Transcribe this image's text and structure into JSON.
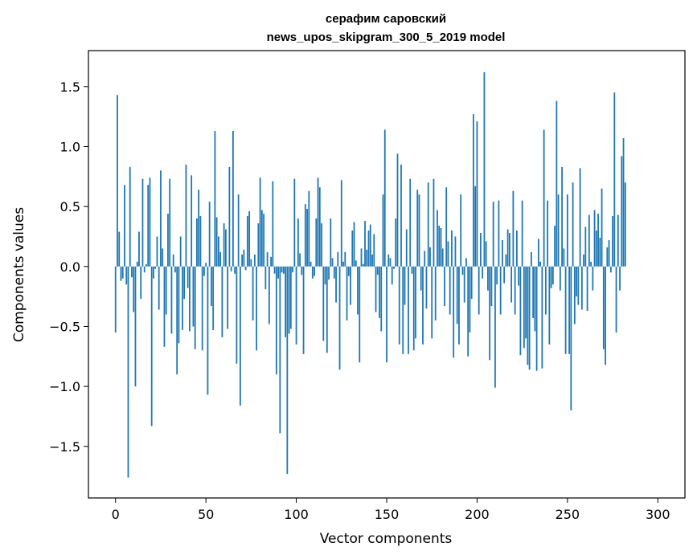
{
  "chart_data": {
    "type": "bar",
    "title": "серафим саровский",
    "subtitle": "news_upos_skipgram_300_5_2019 model",
    "xlabel": "Vector components",
    "ylabel": "Components values",
    "xlim": [
      -15,
      315
    ],
    "ylim": [
      -1.93,
      1.8
    ],
    "xticks": [
      0,
      50,
      100,
      150,
      200,
      250,
      300
    ],
    "xtick_labels": [
      "0",
      "50",
      "100",
      "150",
      "200",
      "250",
      "300"
    ],
    "yticks": [
      1.5,
      1.0,
      0.5,
      0.0,
      -0.5,
      -1.0,
      -1.5
    ],
    "ytick_labels": [
      "1.5",
      "1.0",
      "0.5",
      "0.0",
      "−0.5",
      "−1.0",
      "−1.5"
    ],
    "grid": false,
    "bar_color": "#1f77b4",
    "values": [
      -0.55,
      1.43,
      0.29,
      -0.12,
      -0.1,
      0.68,
      -0.15,
      -1.76,
      0.83,
      -0.09,
      -0.38,
      -1.0,
      0.04,
      0.29,
      -0.27,
      0.73,
      -0.05,
      0.02,
      0.68,
      0.74,
      -1.33,
      -0.1,
      -0.02,
      0.25,
      -0.36,
      0.8,
      0.15,
      -0.67,
      -0.4,
      0.44,
      0.73,
      -0.56,
      0.1,
      -0.05,
      -0.9,
      -0.64,
      0.25,
      -0.53,
      -0.27,
      0.85,
      -0.18,
      -0.54,
      0.76,
      -0.5,
      -0.69,
      0.4,
      0.64,
      0.42,
      -0.7,
      -0.08,
      0.03,
      -1.07,
      0.54,
      -0.33,
      -0.53,
      1.13,
      0.41,
      0.25,
      0.12,
      -0.59,
      0.36,
      0.31,
      -0.52,
      0.83,
      -0.04,
      1.13,
      -0.06,
      -0.81,
      0.6,
      -1.16,
      0.1,
      0.14,
      -0.03,
      0.42,
      0.46,
      0.06,
      -0.45,
      0.1,
      -0.7,
      0.36,
      0.74,
      0.47,
      0.44,
      -0.19,
      0.12,
      -0.48,
      0.08,
      0.71,
      -0.06,
      -0.9,
      -0.1,
      -1.39,
      -0.05,
      -0.06,
      -0.59,
      -1.73,
      -0.56,
      -0.52,
      -0.05,
      0.73,
      -0.65,
      0.4,
      0.11,
      -0.07,
      -0.73,
      0.52,
      0.48,
      0.63,
      0.04,
      -0.1,
      -0.08,
      0.4,
      0.74,
      0.66,
      0.36,
      -0.62,
      -0.15,
      -0.72,
      -0.11,
      0.4,
      0.07,
      -0.1,
      -0.3,
      0.12,
      -0.86,
      0.72,
      0.04,
      0.12,
      -0.45,
      -0.08,
      -0.32,
      0.3,
      0.37,
      0.05,
      -0.4,
      -0.8,
      0.15,
      0.02,
      0.38,
      0.14,
      0.3,
      0.35,
      0.1,
      0.27,
      -0.38,
      -0.07,
      -0.43,
      -0.54,
      0.6,
      1.14,
      -0.8,
      0.1,
      0.07,
      -0.15,
      -0.02,
      0.4,
      0.94,
      -0.65,
      0.85,
      -0.73,
      -0.32,
      0.31,
      -0.73,
      0.73,
      -0.06,
      -0.7,
      -0.6,
      0.64,
      0.6,
      -0.2,
      -0.65,
      0.13,
      -0.35,
      0.7,
      0.16,
      -0.6,
      0.73,
      -0.45,
      0.47,
      0.34,
      0.32,
      0.15,
      -0.33,
      0.66,
      0.21,
      -0.4,
      0.3,
      -0.76,
      0.25,
      -0.48,
      -0.65,
      0.6,
      -0.07,
      -0.3,
      0.07,
      -0.75,
      -0.55,
      -0.27,
      1.27,
      0.67,
      1.21,
      -0.4,
      0.28,
      -0.1,
      1.62,
      0.21,
      -0.2,
      -0.78,
      -0.33,
      0.54,
      -1.01,
      -0.15,
      0.55,
      -0.4,
      0.22,
      -0.14,
      0.1,
      0.31,
      0.28,
      -0.3,
      0.63,
      -0.4,
      0.3,
      -0.16,
      -0.74,
      0.55,
      -0.68,
      -0.6,
      -0.82,
      -0.86,
      0.12,
      -0.43,
      -0.54,
      -0.87,
      0.23,
      0.04,
      -0.85,
      1.14,
      -0.4,
      0.55,
      -0.65,
      -0.18,
      -0.15,
      0.34,
      1.38,
      0.6,
      -0.2,
      0.83,
      0.15,
      -0.73,
      0.6,
      -0.73,
      -1.2,
      0.7,
      -0.48,
      -0.25,
      -0.32,
      0.82,
      -0.36,
      0.1,
      0.33,
      -0.37,
      0.43,
      0.04,
      -0.2,
      0.47,
      0.3,
      0.44,
      0.24,
      0.65,
      -0.69,
      -0.82,
      0.16,
      0.22,
      -0.05,
      0.42,
      1.45,
      -0.55,
      0.43,
      -0.2,
      0.92,
      1.07,
      0.7
    ]
  }
}
